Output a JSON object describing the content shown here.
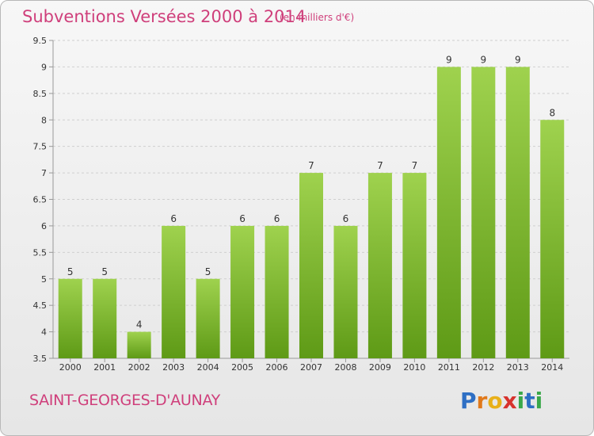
{
  "header": {
    "title": "Subventions Versées 2000 à 2014",
    "unit": "(en milliers d'€)"
  },
  "footer": {
    "commune": "SAINT-GEORGES-D'AUNAY",
    "logo_text": "Proxiti"
  },
  "colors": {
    "title": "#cf3f7b",
    "bar_top": "#9fd24e",
    "bar_bottom": "#5e9a16",
    "logo": [
      "#2e6fc4",
      "#e0791b",
      "#e8b019",
      "#d7322d",
      "#3aa84a",
      "#2e6fc4",
      "#3aa84a"
    ]
  },
  "chart_data": {
    "type": "bar",
    "categories": [
      "2000",
      "2001",
      "2002",
      "2003",
      "2004",
      "2005",
      "2006",
      "2007",
      "2008",
      "2009",
      "2010",
      "2011",
      "2012",
      "2013",
      "2014"
    ],
    "values": [
      5,
      5,
      4,
      6,
      5,
      6,
      6,
      7,
      6,
      7,
      7,
      9,
      9,
      9,
      8
    ],
    "data_labels": [
      "5",
      "5",
      "4",
      "6",
      "5",
      "6",
      "6",
      "7",
      "6",
      "7",
      "7",
      "9",
      "9",
      "9",
      "8"
    ],
    "yticks": [
      "3.5",
      "4",
      "4.5",
      "5",
      "5.5",
      "6",
      "6.5",
      "7",
      "7.5",
      "8",
      "8.5",
      "9",
      "9.5"
    ],
    "ylim": [
      3.5,
      9.5
    ],
    "title": "Subventions Versées 2000 à 2014",
    "xlabel": "",
    "ylabel": "",
    "grid": "horizontal dashed",
    "legend": "none"
  }
}
